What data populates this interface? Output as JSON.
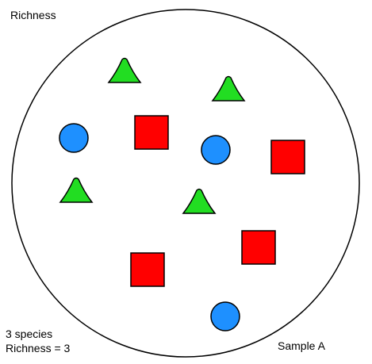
{
  "title": "Richness",
  "summary": {
    "species_text": "3 species",
    "richness_text": "Richness = 3"
  },
  "sample": {
    "label": "Sample A"
  },
  "colors": {
    "circle_species": "#1e90ff",
    "square_species": "#ff0000",
    "triangle_species": "#22dd22",
    "outline": "#000000",
    "background": "#ffffff"
  },
  "individuals": [
    {
      "shape": "triangle"
    },
    {
      "shape": "triangle"
    },
    {
      "shape": "circle"
    },
    {
      "shape": "square"
    },
    {
      "shape": "circle"
    },
    {
      "shape": "square"
    },
    {
      "shape": "triangle"
    },
    {
      "shape": "triangle"
    },
    {
      "shape": "square"
    },
    {
      "shape": "square"
    },
    {
      "shape": "circle"
    }
  ]
}
